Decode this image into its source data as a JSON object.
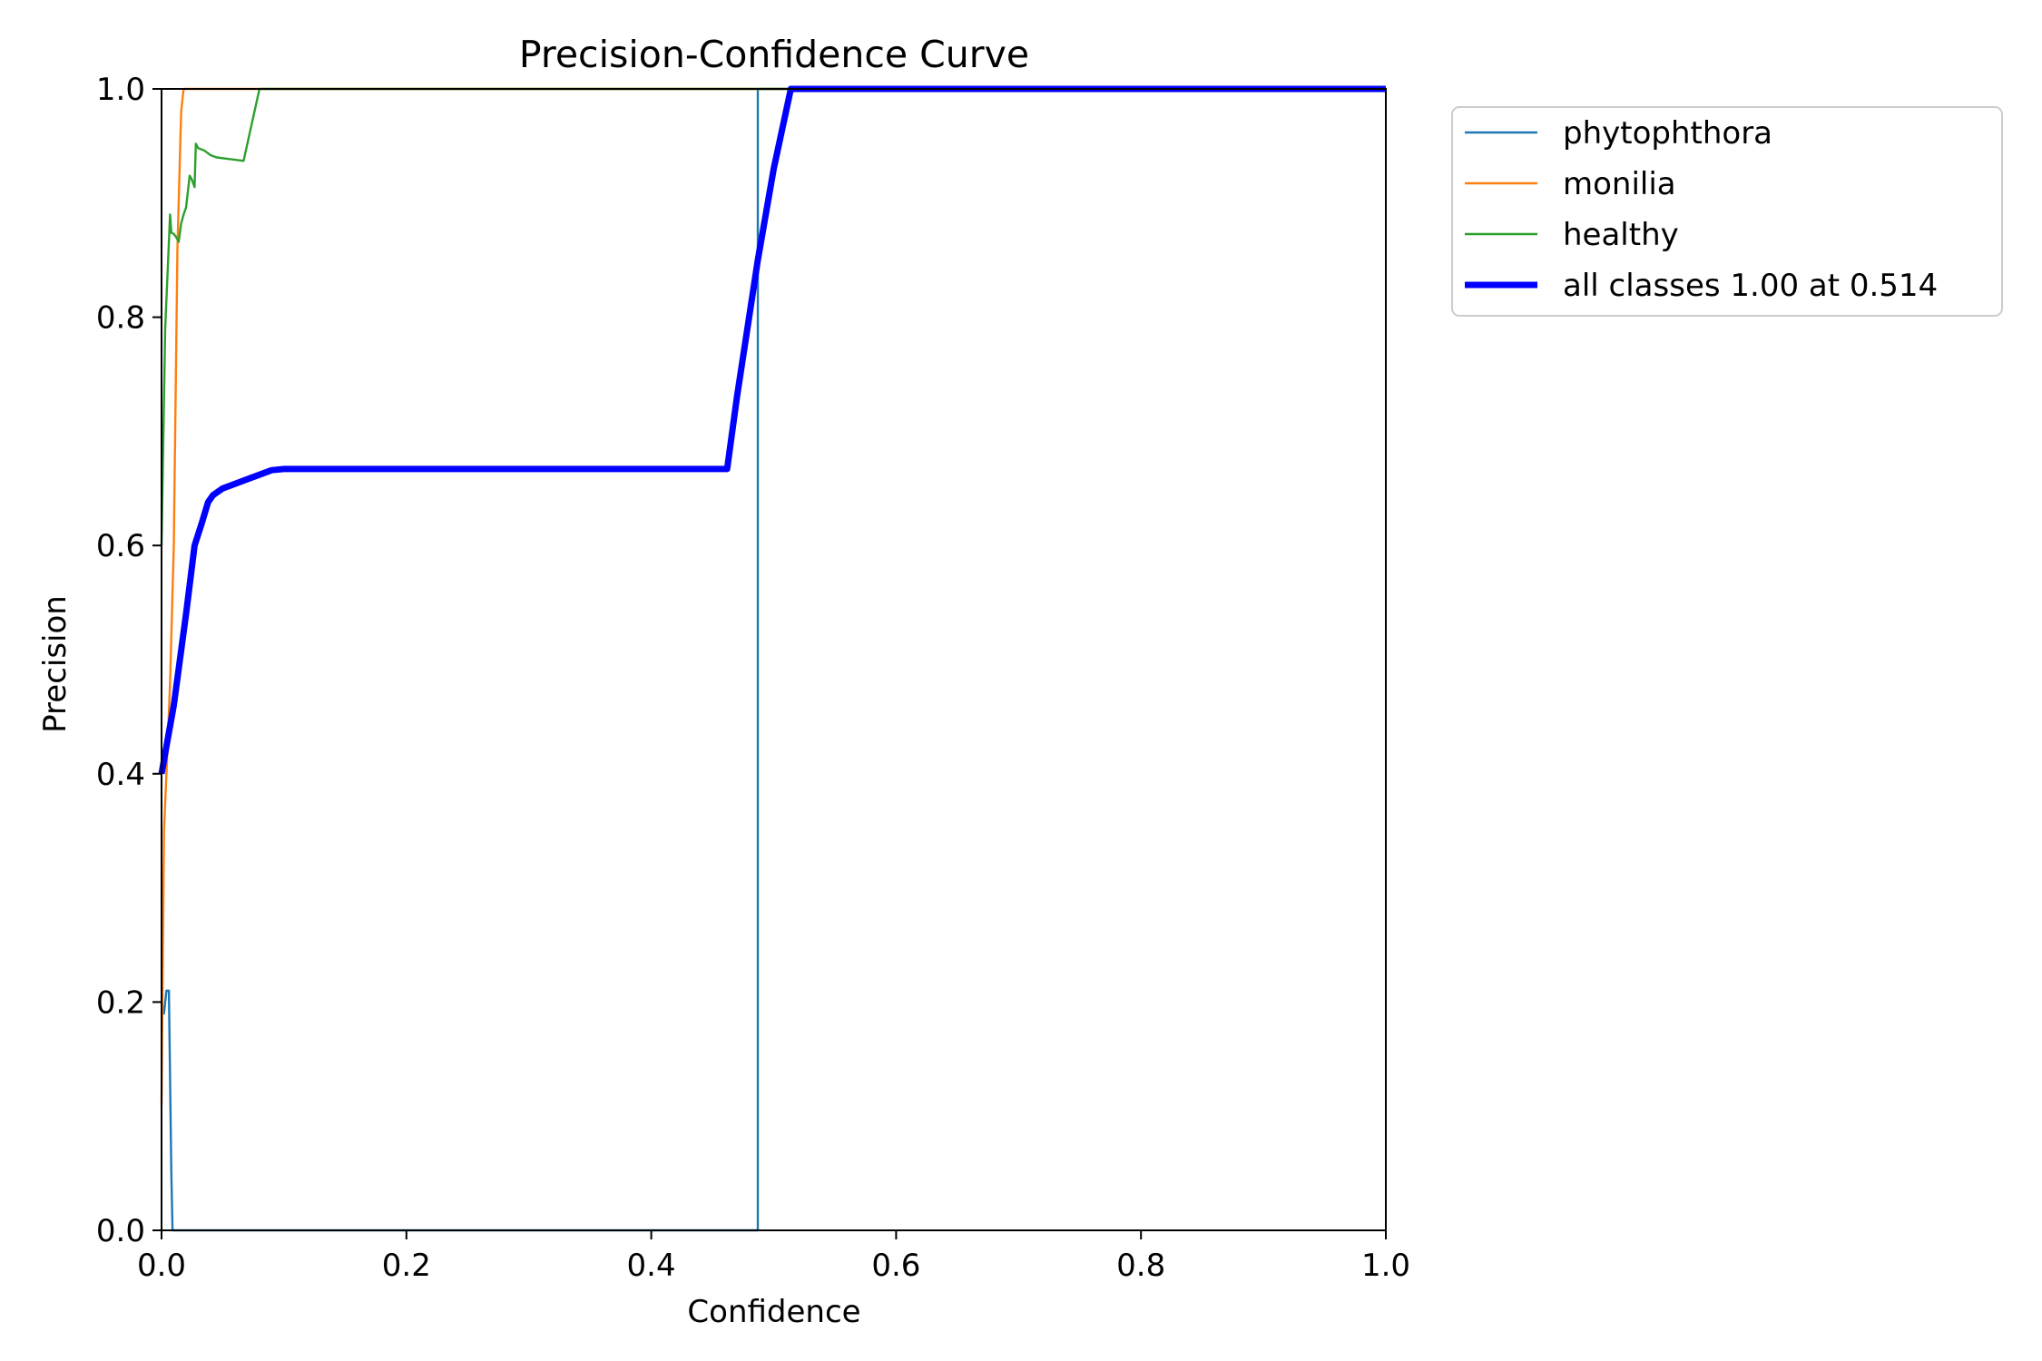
{
  "chart_data": {
    "type": "line",
    "title": "Precision-Confidence Curve",
    "xlabel": "Confidence",
    "ylabel": "Precision",
    "xlim": [
      0,
      1
    ],
    "ylim": [
      0,
      1
    ],
    "xticks": [
      0,
      0.2,
      0.4,
      0.6,
      0.8,
      1.0
    ],
    "xtick_labels": [
      "0.0",
      "0.2",
      "0.4",
      "0.6",
      "0.8",
      "1.0"
    ],
    "yticks": [
      0,
      0.2,
      0.4,
      0.6,
      0.8,
      1.0
    ],
    "ytick_labels": [
      "0.0",
      "0.2",
      "0.4",
      "0.6",
      "0.8",
      "1.0"
    ],
    "grid": false,
    "legend_position": "outside top-right",
    "series": [
      {
        "name": "phytophthora",
        "color": "#1f77b4",
        "width": "thin",
        "x": [
          0.0,
          0.002,
          0.004,
          0.006,
          0.008,
          0.009,
          0.01,
          0.487,
          0.487,
          0.487,
          1.0
        ],
        "y": [
          0.2,
          0.19,
          0.21,
          0.21,
          0.05,
          0.0,
          0.0,
          0.0,
          0.5,
          1.0,
          1.0
        ]
      },
      {
        "name": "monilia",
        "color": "#ff7f0e",
        "width": "thin",
        "x": [
          0.0,
          0.002,
          0.004,
          0.007,
          0.01,
          0.013,
          0.016,
          0.018,
          1.0
        ],
        "y": [
          0.11,
          0.35,
          0.4,
          0.48,
          0.6,
          0.86,
          0.98,
          1.0,
          1.0
        ]
      },
      {
        "name": "healthy",
        "color": "#2ca02c",
        "width": "thin",
        "x": [
          0.0,
          0.003,
          0.005,
          0.007,
          0.008,
          0.01,
          0.012,
          0.014,
          0.016,
          0.018,
          0.02,
          0.023,
          0.025,
          0.027,
          0.028,
          0.03,
          0.035,
          0.04,
          0.045,
          0.067,
          0.08,
          1.0
        ],
        "y": [
          0.6,
          0.79,
          0.84,
          0.89,
          0.874,
          0.873,
          0.87,
          0.866,
          0.882,
          0.89,
          0.896,
          0.924,
          0.92,
          0.914,
          0.952,
          0.948,
          0.946,
          0.942,
          0.94,
          0.937,
          1.0,
          1.0
        ]
      },
      {
        "name": "all classes 1.00 at 0.514",
        "color": "#0000ff",
        "width": "thick",
        "x": [
          0.0,
          0.01,
          0.02,
          0.027,
          0.033,
          0.038,
          0.042,
          0.05,
          0.07,
          0.09,
          0.1,
          0.2,
          0.3,
          0.4,
          0.462,
          0.47,
          0.487,
          0.5,
          0.51,
          0.514,
          1.0
        ],
        "y": [
          0.4,
          0.46,
          0.54,
          0.6,
          0.62,
          0.638,
          0.644,
          0.65,
          0.658,
          0.666,
          0.667,
          0.667,
          0.667,
          0.667,
          0.667,
          0.73,
          0.85,
          0.93,
          0.98,
          1.0,
          1.0
        ]
      }
    ]
  }
}
